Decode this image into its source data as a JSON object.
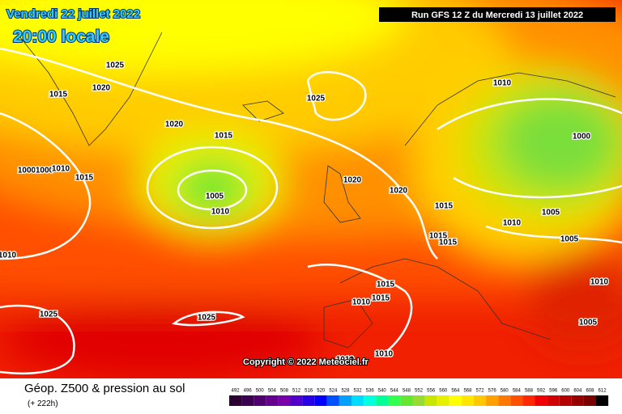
{
  "header": {
    "date": "Vendredi 22 juillet 2022",
    "time": "20:00 locale",
    "run": "Run GFS 12 Z du Mercredi 13 juillet 2022"
  },
  "copyright": "Copyright © 2022 Meteociel.fr",
  "legend": {
    "title": "Géop. Z500 & pression au sol",
    "lead": "(+ 222h)",
    "scale": [
      {
        "value": 492,
        "color": "#2a0033"
      },
      {
        "value": 496,
        "color": "#3c0050"
      },
      {
        "value": 500,
        "color": "#50006e"
      },
      {
        "value": 504,
        "color": "#64008c"
      },
      {
        "value": 508,
        "color": "#7800aa"
      },
      {
        "value": 512,
        "color": "#5000c8"
      },
      {
        "value": 516,
        "color": "#2800e6"
      },
      {
        "value": 520,
        "color": "#0000ff"
      },
      {
        "value": 524,
        "color": "#0050ff"
      },
      {
        "value": 528,
        "color": "#00a0ff"
      },
      {
        "value": 532,
        "color": "#00dcff"
      },
      {
        "value": 536,
        "color": "#00ffdc"
      },
      {
        "value": 540,
        "color": "#00ff96"
      },
      {
        "value": 544,
        "color": "#32ff50"
      },
      {
        "value": 548,
        "color": "#64e632"
      },
      {
        "value": 552,
        "color": "#96dc32"
      },
      {
        "value": 556,
        "color": "#c8e600"
      },
      {
        "value": 560,
        "color": "#e6f000"
      },
      {
        "value": 564,
        "color": "#ffff00"
      },
      {
        "value": 568,
        "color": "#ffe600"
      },
      {
        "value": 572,
        "color": "#ffc800"
      },
      {
        "value": 576,
        "color": "#ffa000"
      },
      {
        "value": 580,
        "color": "#ff7800"
      },
      {
        "value": 584,
        "color": "#ff5000"
      },
      {
        "value": 588,
        "color": "#ff2800"
      },
      {
        "value": 592,
        "color": "#f00000"
      },
      {
        "value": 596,
        "color": "#d20000"
      },
      {
        "value": 600,
        "color": "#b40000"
      },
      {
        "value": 604,
        "color": "#960000"
      },
      {
        "value": 608,
        "color": "#780000"
      },
      {
        "value": 612,
        "color": "#000000"
      }
    ]
  },
  "isobar_labels": [
    "1025",
    "1020",
    "1015",
    "1020",
    "1015",
    "1025",
    "1010",
    "1000",
    "1000",
    "1000",
    "1010",
    "1015",
    "1005",
    "1010",
    "1020",
    "1020",
    "1015",
    "1010",
    "1005",
    "1005",
    "1015",
    "1015",
    "1010",
    "1015",
    "1010",
    "1015",
    "1010",
    "1025",
    "1025",
    "1005",
    "1010",
    "1010"
  ]
}
